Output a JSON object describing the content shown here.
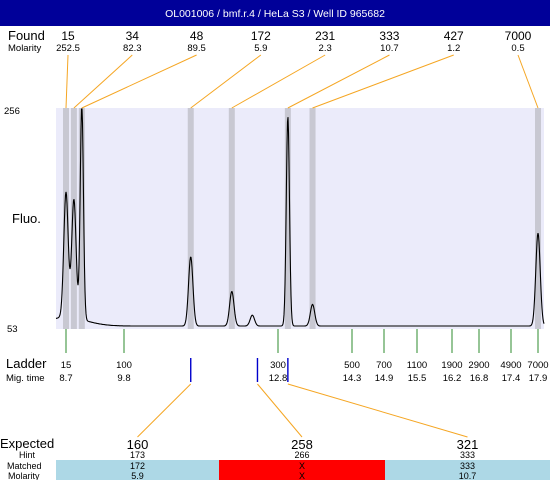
{
  "header": {
    "title": "OL001006 / bmf.r.4 / HeLa S3 / Well ID 965682",
    "background": "#000099",
    "color": "#ffffff"
  },
  "labels": {
    "found": "Found",
    "molarity": "Molarity",
    "fluo": "Fluo.",
    "ladder": "Ladder",
    "mig_time": "Mig. time",
    "expected": "Expected",
    "hint": "Hint",
    "matched": "Matched",
    "molarity_bottom": "Molarity"
  },
  "colors": {
    "plot_bg": "#ebebfa",
    "band": "#c8c8d2",
    "leader": "#f5a623",
    "ladder_tick": "#2e8b2e",
    "expected_tick": "#0000cc",
    "row_ok": "#add8e6",
    "row_bad": "#ff0000",
    "trace": "#000000"
  },
  "chart_data": {
    "type": "line",
    "ylabel": "Fluo.",
    "y_axis": {
      "top_label": "256",
      "bottom_label": "53"
    },
    "ladder": [
      {
        "size": "15",
        "mig_time": "8.7"
      },
      {
        "size": "100",
        "mig_time": "9.8"
      },
      {
        "size": "300",
        "mig_time": "12.8"
      },
      {
        "size": "500",
        "mig_time": "14.3"
      },
      {
        "size": "700",
        "mig_time": "14.9"
      },
      {
        "size": "1100",
        "mig_time": "15.5"
      },
      {
        "size": "1900",
        "mig_time": "16.2"
      },
      {
        "size": "2900",
        "mig_time": "16.8"
      },
      {
        "size": "4900",
        "mig_time": "17.4"
      },
      {
        "size": "7000",
        "mig_time": "17.9"
      }
    ],
    "found": [
      {
        "size": "15",
        "molarity": "252.5",
        "mig_time": 8.7,
        "height": 0.58
      },
      {
        "size": "34",
        "molarity": "82.3",
        "mig_time": 8.85,
        "height": 0.55
      },
      {
        "size": "48",
        "molarity": "89.5",
        "mig_time": 9.0,
        "height": 1.0
      },
      {
        "size": "172",
        "molarity": "5.9",
        "mig_time": 11.1,
        "height": 0.32
      },
      {
        "size": "231",
        "molarity": "2.3",
        "mig_time": 11.9,
        "height": 0.16
      },
      {
        "size": "333",
        "molarity": "10.7",
        "mig_time": 13.0,
        "height": 0.97
      },
      {
        "size": "427",
        "molarity": "1.2",
        "mig_time": 13.5,
        "height": 0.1
      },
      {
        "size": "7000",
        "molarity": "0.5",
        "mig_time": 17.9,
        "height": 0.43
      }
    ],
    "minor_peaks": [
      {
        "mig_time": 12.3,
        "height": 0.05
      }
    ],
    "expected": [
      {
        "size": "160",
        "hint": "173",
        "matched": "172",
        "molarity": "5.9",
        "status": "ok",
        "mig_time": 11.1
      },
      {
        "size": "258",
        "hint": "266",
        "matched": "X",
        "molarity": "X",
        "status": "bad",
        "mig_time": 12.4
      },
      {
        "size": "321",
        "hint": "333",
        "matched": "333",
        "molarity": "10.7",
        "status": "ok",
        "mig_time": 13.0
      }
    ]
  }
}
